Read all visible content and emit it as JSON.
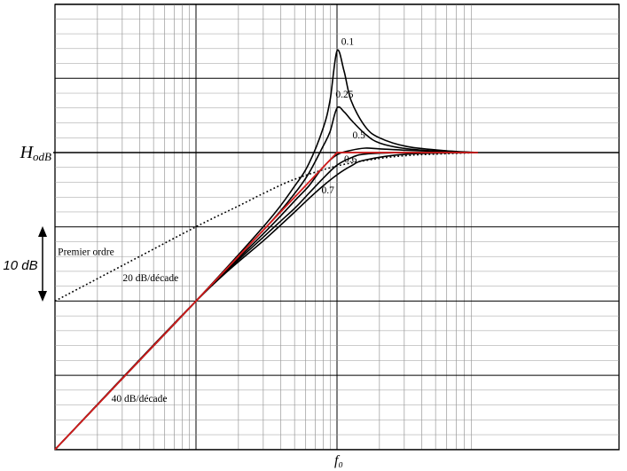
{
  "chart_data": {
    "type": "line",
    "title": "",
    "xlabel": "f₀",
    "ylabel": "",
    "x_scale": "log",
    "x_decades": 2,
    "xlim_decades_from_f0": [
      -2,
      1
    ],
    "ylim_db_relative_to_H0": [
      -40,
      20
    ],
    "grid": true,
    "h0_label": {
      "main": "H",
      "sub": "odB"
    },
    "scale_bar": {
      "label": "10 dB",
      "span_db": 10
    },
    "series": [
      {
        "name": "0.1",
        "style": "solid",
        "color": "#000000",
        "x_decades": [
          -2,
          -1.5,
          -1,
          -0.5,
          -0.3,
          -0.2,
          -0.1,
          -0.05,
          0,
          0.05,
          0.1,
          0.2,
          0.3,
          0.5,
          0.8,
          1
        ],
        "y_db": [
          -40,
          -30,
          -20,
          -9.5,
          -4.5,
          -1.5,
          3.2,
          7,
          13.7,
          11,
          7,
          3.5,
          2,
          0.8,
          0.2,
          0
        ]
      },
      {
        "name": "0.25",
        "style": "solid",
        "color": "#000000",
        "x_decades": [
          -2,
          -1,
          -0.5,
          -0.3,
          -0.2,
          -0.1,
          -0.05,
          0,
          0.05,
          0.1,
          0.2,
          0.3,
          0.5,
          0.8,
          1
        ],
        "y_db": [
          -40,
          -20,
          -10,
          -5.5,
          -2.8,
          0.8,
          2.8,
          6,
          5.5,
          4.4,
          2.5,
          1.3,
          0.5,
          0.1,
          0
        ]
      },
      {
        "name": "0.5",
        "style": "solid",
        "color": "#000000",
        "x_decades": [
          -2,
          -1,
          -0.5,
          -0.3,
          -0.2,
          -0.1,
          0,
          0.1,
          0.2,
          0.3,
          0.5,
          0.8,
          1
        ],
        "y_db": [
          -40,
          -20,
          -10.5,
          -6.5,
          -4.5,
          -2,
          -0.3,
          0.3,
          0.6,
          0.5,
          0.3,
          0.1,
          0
        ]
      },
      {
        "name": "0.6",
        "style": "solid",
        "color": "#000000",
        "x_decades": [
          -2,
          -1,
          -0.5,
          -0.3,
          -0.2,
          -0.1,
          0,
          0.1,
          0.2,
          0.5,
          1
        ],
        "y_db": [
          -40,
          -20,
          -11,
          -7.5,
          -5.5,
          -3.5,
          -1.7,
          -0.7,
          -0.2,
          0,
          0
        ]
      },
      {
        "name": "0.7",
        "style": "solid",
        "color": "#000000",
        "x_decades": [
          -2,
          -1,
          -0.5,
          -0.3,
          -0.2,
          -0.1,
          0,
          0.1,
          0.2,
          0.5,
          1
        ],
        "y_db": [
          -40,
          -20,
          -11.5,
          -8,
          -6.2,
          -4.5,
          -3,
          -1.8,
          -1,
          -0.2,
          0
        ]
      },
      {
        "name": "Premier ordre",
        "style": "dotted",
        "color": "#000000",
        "x_decades": [
          -2,
          -1.5,
          -1,
          -0.7,
          -0.5,
          -0.3,
          0,
          0.3,
          0.5,
          0.7,
          1
        ],
        "y_db": [
          -20,
          -15,
          -10,
          -7.2,
          -5.3,
          -3.6,
          -1.8,
          -0.8,
          -0.4,
          -0.2,
          0
        ]
      },
      {
        "name": "asymptote",
        "style": "solid",
        "color": "#d21c1c",
        "x_decades": [
          -2,
          0,
          1
        ],
        "y_db": [
          -40,
          0,
          0
        ]
      }
    ],
    "annotations": [
      {
        "text": "0.1",
        "x_decades": 0.03,
        "y_db": 14.5
      },
      {
        "text": "0.25",
        "x_decades": -0.01,
        "y_db": 7.4
      },
      {
        "text": "0.5",
        "x_decades": 0.11,
        "y_db": 1.9
      },
      {
        "text": "0.6",
        "x_decades": 0.05,
        "y_db": -1.3
      },
      {
        "text": "0.7",
        "x_decades": -0.11,
        "y_db": -5.5
      },
      {
        "text": "Premier ordre",
        "x_decades": -1.98,
        "y_db": -13.8
      },
      {
        "text": "20 dB/décade",
        "x_decades": -1.52,
        "y_db": -17.3
      },
      {
        "text": "40 dB/décade",
        "x_decades": -1.6,
        "y_db": -33.6
      }
    ]
  }
}
